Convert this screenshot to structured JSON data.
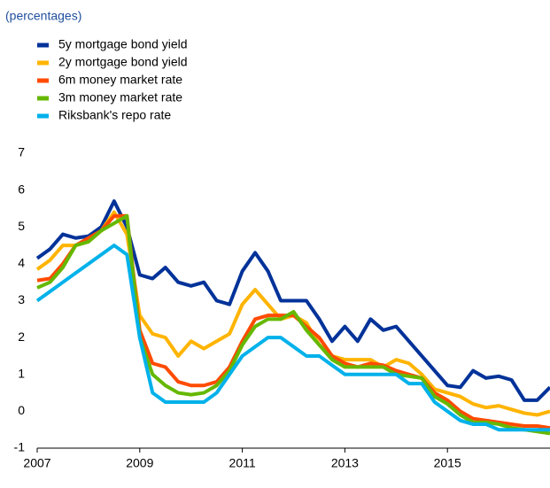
{
  "chart_data": {
    "type": "line",
    "subtitle": "(percentages)",
    "x": [
      2007,
      2007.25,
      2007.5,
      2007.75,
      2008,
      2008.25,
      2008.5,
      2008.75,
      2009,
      2009.25,
      2009.5,
      2009.75,
      2010,
      2010.25,
      2010.5,
      2010.75,
      2011,
      2011.25,
      2011.5,
      2011.75,
      2012,
      2012.25,
      2012.5,
      2012.75,
      2013,
      2013.25,
      2013.5,
      2013.75,
      2014,
      2014.25,
      2014.5,
      2014.75,
      2015,
      2015.25,
      2015.5,
      2015.75,
      2016,
      2016.25,
      2016.5,
      2016.75,
      2017
    ],
    "series": [
      {
        "name": "5y mortgage bond yield",
        "color": "#003299",
        "values": [
          4.15,
          4.4,
          4.8,
          4.7,
          4.75,
          5.0,
          5.7,
          5.0,
          3.7,
          3.6,
          3.9,
          3.5,
          3.4,
          3.5,
          3.0,
          2.9,
          3.8,
          4.3,
          3.8,
          3.0,
          3.0,
          3.0,
          2.5,
          1.9,
          2.3,
          1.9,
          2.5,
          2.2,
          2.3,
          1.9,
          1.5,
          1.1,
          0.7,
          0.65,
          1.1,
          0.9,
          0.95,
          0.85,
          0.3,
          0.3,
          0.65
        ]
      },
      {
        "name": "2y mortgage bond yield",
        "color": "#ffb400",
        "values": [
          3.85,
          4.1,
          4.5,
          4.5,
          4.6,
          4.9,
          5.4,
          4.8,
          2.6,
          2.1,
          2.0,
          1.5,
          1.9,
          1.7,
          1.9,
          2.1,
          2.9,
          3.3,
          2.9,
          2.5,
          2.6,
          2.4,
          1.8,
          1.5,
          1.4,
          1.4,
          1.4,
          1.2,
          1.4,
          1.3,
          1.0,
          0.6,
          0.5,
          0.4,
          0.2,
          0.1,
          0.15,
          0.05,
          -0.05,
          -0.1,
          0.0
        ]
      },
      {
        "name": "6m money market rate",
        "color": "#ff4b00",
        "values": [
          3.55,
          3.6,
          4.0,
          4.5,
          4.7,
          4.9,
          5.3,
          5.3,
          2.2,
          1.3,
          1.2,
          0.8,
          0.7,
          0.7,
          0.8,
          1.2,
          1.9,
          2.5,
          2.6,
          2.6,
          2.6,
          2.3,
          2.0,
          1.5,
          1.3,
          1.2,
          1.3,
          1.25,
          1.1,
          1.0,
          0.9,
          0.5,
          0.3,
          0.0,
          -0.2,
          -0.25,
          -0.3,
          -0.35,
          -0.4,
          -0.4,
          -0.45
        ]
      },
      {
        "name": "3m money market rate",
        "color": "#65b800",
        "values": [
          3.35,
          3.5,
          3.9,
          4.5,
          4.6,
          4.9,
          5.1,
          5.3,
          2.0,
          1.0,
          0.7,
          0.5,
          0.45,
          0.5,
          0.7,
          1.1,
          1.8,
          2.3,
          2.5,
          2.5,
          2.7,
          2.2,
          1.8,
          1.4,
          1.2,
          1.2,
          1.2,
          1.2,
          1.0,
          0.95,
          0.9,
          0.4,
          0.2,
          -0.1,
          -0.3,
          -0.3,
          -0.35,
          -0.45,
          -0.5,
          -0.55,
          -0.6
        ]
      },
      {
        "name": "Riksbank's repo rate",
        "color": "#00b1ea",
        "values": [
          3.0,
          3.25,
          3.5,
          3.75,
          4.0,
          4.25,
          4.5,
          4.25,
          2.0,
          0.5,
          0.25,
          0.25,
          0.25,
          0.25,
          0.5,
          1.0,
          1.5,
          1.75,
          2.0,
          2.0,
          1.75,
          1.5,
          1.5,
          1.25,
          1.0,
          1.0,
          1.0,
          1.0,
          1.0,
          0.75,
          0.75,
          0.25,
          0.0,
          -0.25,
          -0.35,
          -0.35,
          -0.5,
          -0.5,
          -0.5,
          -0.5,
          -0.5
        ]
      }
    ],
    "xlim": [
      2007,
      2017
    ],
    "xticks": [
      2007,
      2009,
      2011,
      2013,
      2015
    ],
    "ylim": [
      -1,
      7
    ],
    "yticks": [
      -1,
      0,
      1,
      2,
      3,
      4,
      5,
      6,
      7
    ],
    "grid": false
  }
}
